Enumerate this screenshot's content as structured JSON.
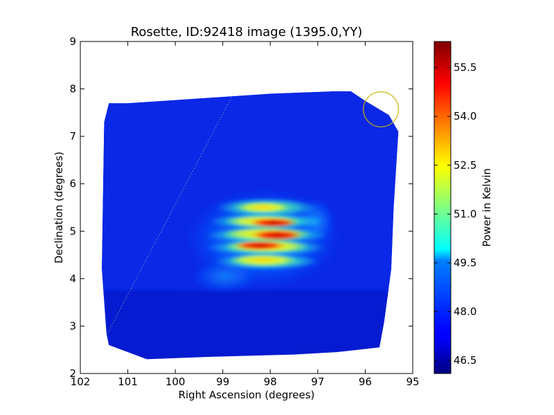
{
  "chart_data": {
    "type": "heatmap",
    "title": "Rosette, ID:92418 image (1395.0,YY)",
    "xlabel": "Right Ascension (degrees)",
    "ylabel": "Declination (degrees)",
    "xlim": [
      102,
      95
    ],
    "ylim": [
      2,
      9
    ],
    "x_ticks": [
      "102",
      "101",
      "100",
      "99",
      "98",
      "97",
      "96",
      "95"
    ],
    "x_tick_values": [
      102,
      101,
      100,
      99,
      98,
      97,
      96,
      95
    ],
    "y_ticks": [
      "2",
      "3",
      "4",
      "5",
      "6",
      "7",
      "8",
      "9"
    ],
    "y_tick_values": [
      2,
      3,
      4,
      5,
      6,
      7,
      8,
      9
    ],
    "colorbar": {
      "label": "Power in Kelvin",
      "range": [
        46.1,
        56.3
      ],
      "ticks": [
        "46.5",
        "48.0",
        "49.5",
        "51.0",
        "52.5",
        "54.0",
        "55.5"
      ],
      "tick_values": [
        46.5,
        48.0,
        49.5,
        51.0,
        52.5,
        54.0,
        55.5
      ],
      "colormap": "jet"
    },
    "background_level": 46.8,
    "peak": {
      "ra": 97.9,
      "dec": 4.85,
      "value": 56.1
    },
    "mosaic_outline": [
      [
        101.4,
        7.7
      ],
      [
        101.5,
        7.3
      ],
      [
        101.55,
        4.2
      ],
      [
        101.45,
        2.85
      ],
      [
        101.4,
        2.6
      ],
      [
        101.0,
        2.45
      ],
      [
        100.6,
        2.3
      ],
      [
        99.3,
        2.35
      ],
      [
        97.5,
        2.4
      ],
      [
        96.6,
        2.45
      ],
      [
        95.7,
        2.55
      ],
      [
        95.6,
        3.1
      ],
      [
        95.45,
        4.2
      ],
      [
        95.4,
        5.5
      ],
      [
        95.3,
        7.1
      ],
      [
        95.5,
        7.45
      ],
      [
        96.0,
        7.75
      ],
      [
        96.3,
        7.95
      ],
      [
        96.7,
        7.95
      ],
      [
        98.0,
        7.9
      ],
      [
        99.5,
        7.8
      ],
      [
        101.0,
        7.7
      ]
    ],
    "dotted_line": {
      "from": [
        101.45,
        2.8
      ],
      "to": [
        98.75,
        7.95
      ],
      "color": "#c8c8a0"
    },
    "circle_marker": {
      "ra": 95.67,
      "dec": 7.57,
      "radius_deg": 0.37,
      "color": "#c8b400"
    }
  }
}
